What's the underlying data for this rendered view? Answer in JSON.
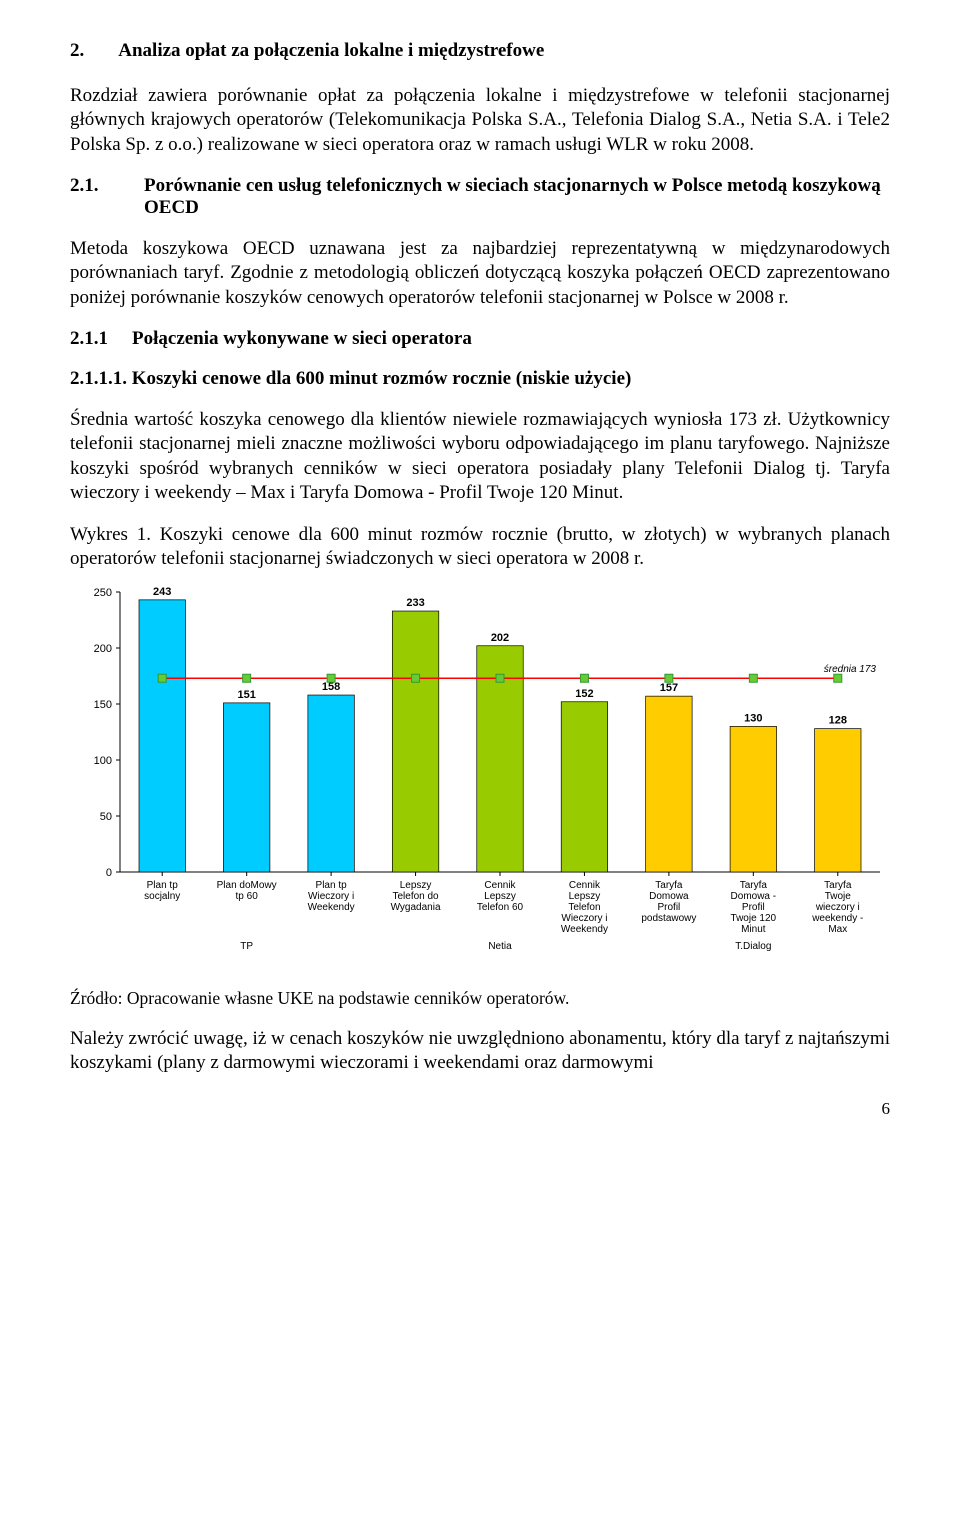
{
  "heading2": {
    "num": "2.",
    "title": "Analiza opłat za połączenia lokalne i międzystrefowe"
  },
  "p1": "Rozdział zawiera porównanie opłat za połączenia lokalne i międzystrefowe w telefonii stacjonarnej głównych krajowych operatorów (Telekomunikacja Polska S.A., Telefonia Dialog S.A., Netia S.A. i Tele2 Polska Sp. z o.o.) realizowane w sieci operatora oraz w ramach usługi WLR w roku 2008.",
  "heading21": {
    "num": "2.1.",
    "title": "Porównanie cen usług telefonicznych w sieciach stacjonarnych w Polsce metodą koszykową OECD"
  },
  "p2": "Metoda koszykowa OECD uznawana jest za najbardziej reprezentatywną w międzynarodowych porównaniach taryf. Zgodnie z metodologią obliczeń dotyczącą koszyka połączeń OECD zaprezentowano poniżej porównanie koszyków cenowych operatorów telefonii stacjonarnej w Polsce w 2008 r.",
  "heading211": {
    "num": "2.1.1",
    "title": "Połączenia wykonywane w sieci operatora"
  },
  "heading2111": "2.1.1.1. Koszyki cenowe dla 600 minut rozmów rocznie (niskie użycie)",
  "p3": "Średnia wartość koszyka cenowego dla klientów niewiele rozmawiających wyniosła 173 zł. Użytkownicy telefonii stacjonarnej mieli znaczne możliwości wyboru odpowiadającego im planu taryfowego. Najniższe koszyki spośród wybranych cenników w sieci operatora posiadały plany Telefonii Dialog tj. Taryfa wieczory i weekendy – Max i Taryfa Domowa - Profil Twoje 120 Minut.",
  "caption1": "Wykres 1. Koszyki cenowe dla 600 minut rozmów rocznie (brutto, w złotych) w wybranych planach operatorów telefonii stacjonarnej świadczonych w sieci operatora w 2008 r.",
  "chart": {
    "type": "bar",
    "ylim": [
      0,
      250
    ],
    "ytick_step": 50,
    "yticks": [
      0,
      50,
      100,
      150,
      200,
      250
    ],
    "avg_value": 173,
    "avg_label": "średnia 173",
    "avg_color": "#ff0000",
    "colors": {
      "bg": "#ffffff",
      "border": "#000000",
      "grid": "#000000",
      "text": "#000000",
      "bar_border": "#000000",
      "marker_border": "#339933",
      "marker_fill": "#66cc33"
    },
    "font": {
      "axis_size": 11,
      "label_size": 10,
      "avg_size": 10,
      "avg_style": "italic"
    },
    "bars": [
      {
        "label": "Plan tp socjalny",
        "value": 243,
        "fill": "#00ccff",
        "group": "TP"
      },
      {
        "label": "Plan doMowy tp 60",
        "value": 151,
        "fill": "#00ccff",
        "group": "TP"
      },
      {
        "label": "Plan tp Wieczory i Weekendy",
        "value": 158,
        "fill": "#00ccff",
        "group": "TP"
      },
      {
        "label": "Lepszy Telefon do Wygadania",
        "value": 233,
        "fill": "#99cc00",
        "group": "Netia"
      },
      {
        "label": "Cennik Lepszy Telefon 60",
        "value": 202,
        "fill": "#99cc00",
        "group": "Netia"
      },
      {
        "label": "Cennik Lepszy Telefon Wieczory i Weekendy",
        "value": 152,
        "fill": "#99cc00",
        "group": "Netia"
      },
      {
        "label": "Taryfa Domowa Profil podstawowy",
        "value": 157,
        "fill": "#ffcc00",
        "group": "T.Dialog"
      },
      {
        "label": "Taryfa Domowa - Profil Twoje 120 Minut",
        "value": 130,
        "fill": "#ffcc00",
        "group": "T.Dialog"
      },
      {
        "label": "Taryfa Twoje wieczory i weekendy - Max",
        "value": 128,
        "fill": "#ffcc00",
        "group": "T.Dialog"
      }
    ],
    "groups": [
      "TP",
      "Netia",
      "T.Dialog"
    ]
  },
  "source": "Źródło: Opracowanie własne UKE na podstawie cenników operatorów.",
  "p4": "Należy zwrócić uwagę, iż w cenach koszyków nie uwzględniono abonamentu, który dla taryf z najtańszymi koszykami (plany z darmowymi wieczorami i weekendami oraz darmowymi",
  "page_number": "6"
}
